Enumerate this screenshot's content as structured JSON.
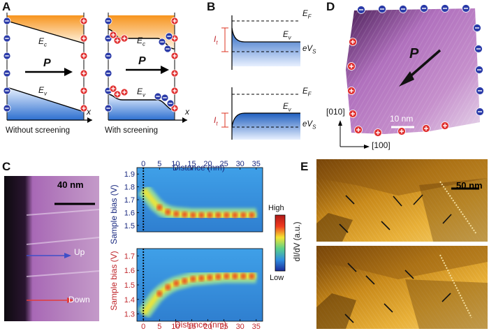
{
  "panels": {
    "A": {
      "label": "A",
      "left": {
        "caption": "Without screening",
        "ec": "E",
        "ec_sub": "c",
        "ev": "E",
        "ev_sub": "v",
        "p": "P",
        "x": "x"
      },
      "right": {
        "caption": "With screening",
        "ec": "E",
        "ec_sub": "c",
        "ev": "E",
        "ev_sub": "v",
        "p": "P",
        "x": "x"
      }
    },
    "B": {
      "label": "B",
      "top": {
        "ef": "E",
        "ef_sub": "F",
        "ev": "E",
        "ev_sub": "v",
        "evs": "eV",
        "evs_sub": "S",
        "it": "I",
        "it_sub": "t"
      },
      "bottom": {
        "ef": "E",
        "ef_sub": "F",
        "ev": "E",
        "ev_sub": "v",
        "evs": "eV",
        "evs_sub": "S",
        "it": "I",
        "it_sub": "t"
      }
    },
    "C": {
      "label": "C",
      "scalebar": "40 nm",
      "up": "Up",
      "down": "Down",
      "top_xlabel": "Distance (nm)",
      "bottom_xlabel": "Distance (nm)",
      "top_ylabel": "Sample bias (V)",
      "bottom_ylabel": "Sample bias (V)",
      "colorbar_label": "dI/dV (a.u.)",
      "colorbar_high": "High",
      "colorbar_low": "Low"
    },
    "D": {
      "label": "D",
      "p": "P",
      "scalebar": "10 nm",
      "axis_010": "[010]",
      "axis_100": "[100]"
    },
    "E": {
      "label": "E",
      "scalebar": "50 nm"
    }
  },
  "chart_data": [
    {
      "type": "heatmap",
      "title": "",
      "xlabel": "Distance (nm)",
      "ylabel": "Sample bias (V)",
      "x_ticks": [
        "0",
        "5",
        "10",
        "15",
        "20",
        "25",
        "30",
        "35"
      ],
      "y_ticks": [
        "1.9",
        "1.8",
        "1.7",
        "1.6",
        "1.5"
      ],
      "xlim": [
        -2,
        37
      ],
      "ylim": [
        1.45,
        1.95
      ],
      "curve_x": [
        0,
        2,
        4,
        6,
        8,
        10,
        15,
        20,
        25,
        30,
        35
      ],
      "curve_y": [
        1.78,
        1.72,
        1.66,
        1.62,
        1.6,
        1.59,
        1.58,
        1.58,
        1.58,
        1.58,
        1.58
      ]
    },
    {
      "type": "heatmap",
      "title": "",
      "xlabel": "Distance (nm)",
      "ylabel": "Sample bias (V)",
      "x_ticks": [
        "0",
        "5",
        "10",
        "15",
        "20",
        "25",
        "30",
        "35"
      ],
      "y_ticks": [
        "1.7",
        "1.6",
        "1.5",
        "1.4",
        "1.3"
      ],
      "xlim": [
        -2,
        37
      ],
      "ylim": [
        1.25,
        1.75
      ],
      "curve_x": [
        0,
        2,
        4,
        6,
        8,
        10,
        15,
        20,
        25,
        30,
        35
      ],
      "curve_y": [
        1.3,
        1.36,
        1.42,
        1.46,
        1.49,
        1.51,
        1.54,
        1.55,
        1.56,
        1.56,
        1.56
      ]
    }
  ]
}
